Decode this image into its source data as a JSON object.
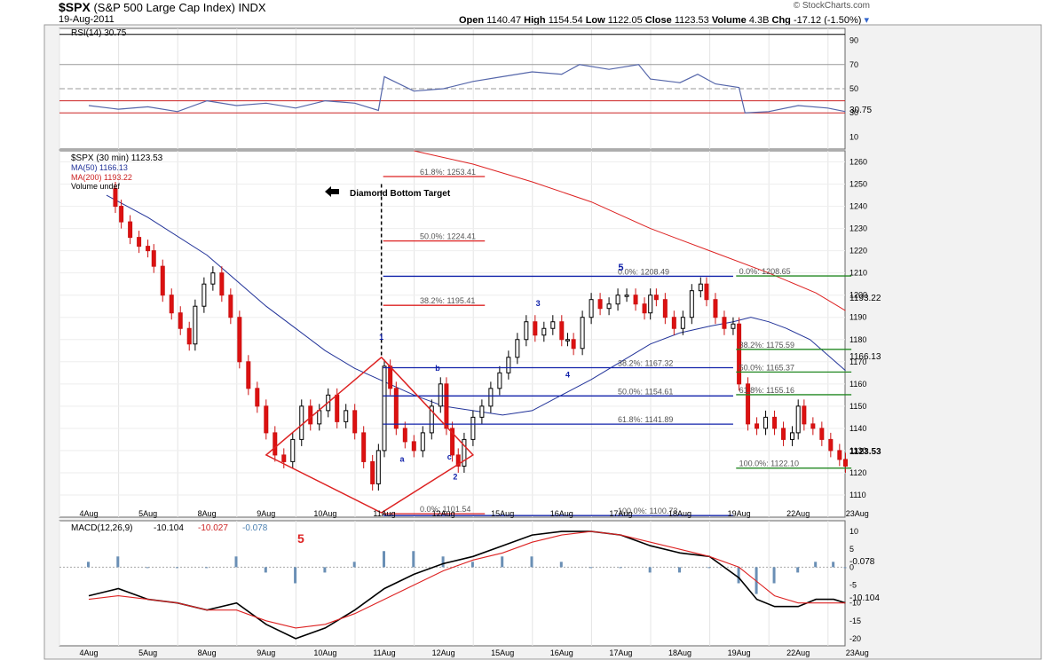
{
  "header": {
    "symbol": "$SPX",
    "name": "(S&P 500 Large Cap Index)",
    "exchange": "INDX",
    "date": "19-Aug-2011",
    "credit": "© StockCharts.com",
    "open_label": "Open",
    "open": "1140.47",
    "high_label": "High",
    "high": "1154.54",
    "low_label": "Low",
    "low": "1122.05",
    "close_label": "Close",
    "close": "1123.53",
    "volume_label": "Volume",
    "volume": "4.3B",
    "chg_label": "Chg",
    "chg": "-17.12 (-1.50%)"
  },
  "rsi_panel": {
    "legend": "RSI(14) 30.75",
    "current_label": "30.75",
    "ylim": [
      0,
      100
    ],
    "ticks": [
      10,
      30,
      50,
      70,
      90
    ],
    "levels": [
      30,
      40,
      50,
      70,
      95
    ]
  },
  "price_panel": {
    "legend_main": "$SPX (30 min) 1123.53",
    "legend_ma50": "MA(50) 1166.13",
    "legend_ma200": "MA(200) 1193.22",
    "legend_vol": "Volume undef",
    "ylim": [
      1100,
      1265
    ],
    "ticks": [
      1110,
      1120,
      1130,
      1140,
      1150,
      1160,
      1170,
      1180,
      1190,
      1200,
      1210,
      1220,
      1230,
      1240,
      1250,
      1260
    ],
    "ma200_label": "1193.22",
    "ma50_label": "1166.13",
    "close_label": "1123.53",
    "annotation": "Diamond Bottom Target",
    "dotted_line_x": 4.95,
    "dotted_line_top": 1250,
    "fib_upper": [
      {
        "label": "61.8%: 1253.41",
        "value": 1253.41
      },
      {
        "label": "50.0%: 1224.41",
        "value": 1224.41
      },
      {
        "label": "38.2%: 1195.41",
        "value": 1195.41
      },
      {
        "label": "0.0%: 1101.54",
        "value": 1101.54
      }
    ],
    "fib_blue": [
      {
        "label": "0.0%: 1208.49",
        "value": 1208.49
      },
      {
        "label": "38.2%: 1167.32",
        "value": 1167.32
      },
      {
        "label": "50.0%: 1154.61",
        "value": 1154.61
      },
      {
        "label": "61.8%: 1141.89",
        "value": 1141.89
      },
      {
        "label": "100.0%: 1100.73",
        "value": 1100.73
      }
    ],
    "fib_green": [
      {
        "label": "0.0%: 1208.65",
        "value": 1208.65
      },
      {
        "label": "38.2%: 1175.59",
        "value": 1175.59
      },
      {
        "label": "50.0%: 1165.37",
        "value": 1165.37
      },
      {
        "label": "61.8%: 1155.16",
        "value": 1155.16
      },
      {
        "label": "100.0%: 1122.10",
        "value": 1122.1
      }
    ],
    "waves": [
      {
        "label": "1",
        "x": 4.95,
        "y": 1180
      },
      {
        "label": "a",
        "x": 5.3,
        "y": 1125
      },
      {
        "label": "b",
        "x": 5.9,
        "y": 1166
      },
      {
        "label": "c",
        "x": 6.1,
        "y": 1126
      },
      {
        "label": "2",
        "x": 6.2,
        "y": 1117
      },
      {
        "label": "3",
        "x": 7.6,
        "y": 1195
      },
      {
        "label": "4",
        "x": 8.1,
        "y": 1163
      },
      {
        "label": "5",
        "x": 9.0,
        "y": 1211
      }
    ],
    "diamond": [
      [
        3.0,
        1128
      ],
      [
        4.95,
        1172
      ],
      [
        6.5,
        1128
      ],
      [
        4.95,
        1102
      ]
    ]
  },
  "macd_panel": {
    "legend_name": "MACD(12,26,9)",
    "legend_macd": "-10.104",
    "legend_signal": "-10.027",
    "legend_hist": "-0.078",
    "annotation": "5",
    "ylim": [
      -22,
      13
    ],
    "ticks": [
      10,
      5,
      0,
      -5,
      -10,
      -15,
      -20
    ],
    "label_macd": "-10.104",
    "label_hist": "-0.078"
  },
  "x_axis": {
    "labels": [
      "4Aug",
      "5Aug",
      "8Aug",
      "9Aug",
      "10Aug",
      "11Aug",
      "12Aug",
      "15Aug",
      "16Aug",
      "17Aug",
      "18Aug",
      "19Aug",
      "22Aug",
      "23Aug"
    ]
  },
  "chart_data": {
    "type": "candlestick",
    "title": "$SPX (S&P 500 Large Cap Index) INDX 30 min",
    "x_unit": "trading day index (0 = 4Aug)",
    "ylim": [
      1100,
      1265
    ],
    "closes": [
      [
        0.3,
        1248
      ],
      [
        0.45,
        1240
      ],
      [
        0.55,
        1233
      ],
      [
        0.7,
        1226
      ],
      [
        0.85,
        1222
      ],
      [
        1.0,
        1220
      ],
      [
        1.1,
        1213
      ],
      [
        1.25,
        1200
      ],
      [
        1.4,
        1192
      ],
      [
        1.55,
        1185
      ],
      [
        1.7,
        1178
      ],
      [
        1.8,
        1195
      ],
      [
        1.95,
        1205
      ],
      [
        2.1,
        1210
      ],
      [
        2.25,
        1200
      ],
      [
        2.4,
        1190
      ],
      [
        2.55,
        1170
      ],
      [
        2.7,
        1158
      ],
      [
        2.85,
        1150
      ],
      [
        3.0,
        1138
      ],
      [
        3.15,
        1128
      ],
      [
        3.3,
        1125
      ],
      [
        3.45,
        1135
      ],
      [
        3.6,
        1150
      ],
      [
        3.75,
        1142
      ],
      [
        3.9,
        1148
      ],
      [
        4.05,
        1155
      ],
      [
        4.2,
        1143
      ],
      [
        4.35,
        1148
      ],
      [
        4.5,
        1138
      ],
      [
        4.65,
        1125
      ],
      [
        4.8,
        1115
      ],
      [
        4.9,
        1130
      ],
      [
        5.0,
        1168
      ],
      [
        5.1,
        1158
      ],
      [
        5.2,
        1140
      ],
      [
        5.35,
        1134
      ],
      [
        5.5,
        1130
      ],
      [
        5.65,
        1138
      ],
      [
        5.8,
        1150
      ],
      [
        5.95,
        1160
      ],
      [
        6.05,
        1140
      ],
      [
        6.15,
        1128
      ],
      [
        6.25,
        1123
      ],
      [
        6.35,
        1135
      ],
      [
        6.5,
        1145
      ],
      [
        6.65,
        1150
      ],
      [
        6.8,
        1158
      ],
      [
        6.95,
        1165
      ],
      [
        7.1,
        1172
      ],
      [
        7.25,
        1180
      ],
      [
        7.4,
        1188
      ],
      [
        7.55,
        1182
      ],
      [
        7.7,
        1185
      ],
      [
        7.85,
        1188
      ],
      [
        8.0,
        1180
      ],
      [
        8.1,
        1180
      ],
      [
        8.2,
        1176
      ],
      [
        8.35,
        1190
      ],
      [
        8.5,
        1198
      ],
      [
        8.65,
        1194
      ],
      [
        8.8,
        1196
      ],
      [
        8.95,
        1200
      ],
      [
        9.1,
        1200
      ],
      [
        9.25,
        1196
      ],
      [
        9.4,
        1192
      ],
      [
        9.5,
        1200
      ],
      [
        9.6,
        1198
      ],
      [
        9.75,
        1190
      ],
      [
        9.9,
        1185
      ],
      [
        10.05,
        1190
      ],
      [
        10.2,
        1202
      ],
      [
        10.35,
        1205
      ],
      [
        10.45,
        1198
      ],
      [
        10.6,
        1190
      ],
      [
        10.75,
        1185
      ],
      [
        10.9,
        1187
      ],
      [
        11.0,
        1160
      ],
      [
        11.15,
        1142
      ],
      [
        11.3,
        1140
      ],
      [
        11.45,
        1145
      ],
      [
        11.6,
        1140
      ],
      [
        11.75,
        1135
      ],
      [
        11.9,
        1138
      ],
      [
        12.0,
        1150
      ],
      [
        12.1,
        1142
      ],
      [
        12.25,
        1140
      ],
      [
        12.4,
        1135
      ],
      [
        12.55,
        1130
      ],
      [
        12.7,
        1126
      ],
      [
        12.8,
        1123
      ]
    ],
    "ma50": [
      [
        0.3,
        1245
      ],
      [
        1.0,
        1235
      ],
      [
        2.0,
        1218
      ],
      [
        3.0,
        1195
      ],
      [
        3.5,
        1185
      ],
      [
        4.0,
        1175
      ],
      [
        4.5,
        1167
      ],
      [
        5.0,
        1161
      ],
      [
        5.5,
        1155
      ],
      [
        6.0,
        1150
      ],
      [
        6.5,
        1148
      ],
      [
        7.0,
        1146
      ],
      [
        7.5,
        1148
      ],
      [
        8.0,
        1155
      ],
      [
        8.5,
        1162
      ],
      [
        9.0,
        1170
      ],
      [
        9.5,
        1178
      ],
      [
        10.0,
        1183
      ],
      [
        10.5,
        1186
      ],
      [
        10.9,
        1188
      ],
      [
        11.2,
        1190
      ],
      [
        11.5,
        1188
      ],
      [
        11.8,
        1185
      ],
      [
        12.2,
        1180
      ],
      [
        12.5,
        1173
      ],
      [
        12.8,
        1166
      ]
    ],
    "ma200": [
      [
        5.5,
        1265
      ],
      [
        6.5,
        1259
      ],
      [
        7.5,
        1251
      ],
      [
        8.5,
        1242
      ],
      [
        9.5,
        1230
      ],
      [
        10.5,
        1220
      ],
      [
        11.5,
        1210
      ],
      [
        12.3,
        1201
      ],
      [
        12.8,
        1193
      ]
    ],
    "rsi": [
      [
        0.0,
        36
      ],
      [
        0.5,
        33
      ],
      [
        1.0,
        35
      ],
      [
        1.5,
        31
      ],
      [
        2.0,
        40
      ],
      [
        2.5,
        36
      ],
      [
        3.0,
        38
      ],
      [
        3.5,
        34
      ],
      [
        4.0,
        40
      ],
      [
        4.5,
        38
      ],
      [
        4.9,
        32
      ],
      [
        5.0,
        60
      ],
      [
        5.5,
        48
      ],
      [
        6.0,
        50
      ],
      [
        6.5,
        56
      ],
      [
        7.0,
        60
      ],
      [
        7.5,
        64
      ],
      [
        8.0,
        62
      ],
      [
        8.3,
        70
      ],
      [
        8.8,
        66
      ],
      [
        9.3,
        70
      ],
      [
        9.5,
        58
      ],
      [
        10.0,
        55
      ],
      [
        10.3,
        62
      ],
      [
        10.6,
        54
      ],
      [
        11.0,
        51
      ],
      [
        11.1,
        30
      ],
      [
        11.5,
        31
      ],
      [
        12.0,
        36
      ],
      [
        12.5,
        34
      ],
      [
        12.8,
        31
      ]
    ],
    "macd": [
      [
        0.0,
        -8
      ],
      [
        0.5,
        -6
      ],
      [
        1.0,
        -9
      ],
      [
        1.5,
        -10
      ],
      [
        2.0,
        -12
      ],
      [
        2.5,
        -10
      ],
      [
        3.0,
        -16
      ],
      [
        3.5,
        -20
      ],
      [
        4.0,
        -17
      ],
      [
        4.5,
        -12
      ],
      [
        5.0,
        -6
      ],
      [
        5.5,
        -2
      ],
      [
        6.0,
        1
      ],
      [
        6.5,
        3
      ],
      [
        7.0,
        6
      ],
      [
        7.5,
        9
      ],
      [
        8.0,
        10
      ],
      [
        8.5,
        10
      ],
      [
        9.0,
        9
      ],
      [
        9.5,
        6
      ],
      [
        10.0,
        4
      ],
      [
        10.5,
        3
      ],
      [
        11.0,
        -3
      ],
      [
        11.3,
        -9
      ],
      [
        11.6,
        -11
      ],
      [
        12.0,
        -11
      ],
      [
        12.3,
        -9
      ],
      [
        12.6,
        -9
      ],
      [
        12.8,
        -10
      ]
    ],
    "signal": [
      [
        0.0,
        -9
      ],
      [
        0.5,
        -8
      ],
      [
        1.0,
        -9
      ],
      [
        1.5,
        -10
      ],
      [
        2.0,
        -12
      ],
      [
        2.5,
        -12
      ],
      [
        3.0,
        -15
      ],
      [
        3.5,
        -17
      ],
      [
        4.0,
        -16
      ],
      [
        4.5,
        -13
      ],
      [
        5.0,
        -9
      ],
      [
        5.5,
        -5
      ],
      [
        6.0,
        -1
      ],
      [
        6.5,
        2
      ],
      [
        7.0,
        4
      ],
      [
        7.5,
        7
      ],
      [
        8.0,
        9
      ],
      [
        8.5,
        10
      ],
      [
        9.0,
        9
      ],
      [
        9.5,
        7
      ],
      [
        10.0,
        5
      ],
      [
        10.5,
        3
      ],
      [
        11.0,
        0
      ],
      [
        11.3,
        -4
      ],
      [
        11.6,
        -8
      ],
      [
        12.0,
        -10
      ],
      [
        12.3,
        -10
      ],
      [
        12.6,
        -10
      ],
      [
        12.8,
        -10
      ]
    ]
  }
}
